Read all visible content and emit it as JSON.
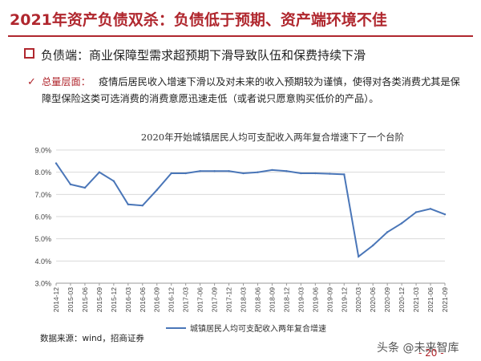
{
  "header": {
    "title": "2021年资产负债双杀：负债低于预期、资产端环境不佳"
  },
  "section": {
    "title": "负债端：商业保障型需求超预期下滑导致队伍和保费持续下滑"
  },
  "bullet": {
    "key": "总量层面：",
    "text": "疫情后居民收入增速下滑以及对未来的收入预期较为谨慎，使得对各类消费尤其是保障型保险这类可选消费的消费意愿迅速走低（或者说只愿意购买低价的产品）。"
  },
  "source": "数据来源：wind，招商证券",
  "watermark": "头条 @未来智库",
  "page_number": "- 20 -",
  "colors": {
    "accent": "#b0272e",
    "series": "#4a76b8"
  },
  "chart_data": {
    "type": "line",
    "title": "2020年开始城镇居民人均可支配收入两年复合增速下了一个台阶",
    "categories": [
      "2014-12",
      "2015-03",
      "2015-06",
      "2015-09",
      "2015-12",
      "2016-03",
      "2016-06",
      "2016-09",
      "2016-12",
      "2017-03",
      "2017-06",
      "2017-09",
      "2017-12",
      "2018-03",
      "2018-06",
      "2018-09",
      "2018-12",
      "2019-03",
      "2019-06",
      "2019-09",
      "2019-12",
      "2020-03",
      "2020-06",
      "2020-09",
      "2020-12",
      "2021-03",
      "2021-06",
      "2021-09"
    ],
    "series": [
      {
        "name": "城镇居民人均可支配收入两年复合增速",
        "values": [
          8.4,
          7.45,
          7.3,
          8.0,
          7.6,
          6.55,
          6.5,
          7.2,
          7.95,
          7.95,
          8.05,
          8.05,
          8.05,
          7.95,
          8.0,
          8.1,
          8.05,
          7.95,
          7.95,
          7.93,
          7.9,
          4.2,
          4.7,
          5.3,
          5.7,
          6.2,
          6.35,
          6.1
        ]
      }
    ],
    "y_ticks": [
      "3.0%",
      "4.0%",
      "5.0%",
      "6.0%",
      "7.0%",
      "8.0%",
      "9.0%"
    ],
    "ylim": [
      3.0,
      9.0
    ],
    "grid": true,
    "legend": "bottom"
  }
}
